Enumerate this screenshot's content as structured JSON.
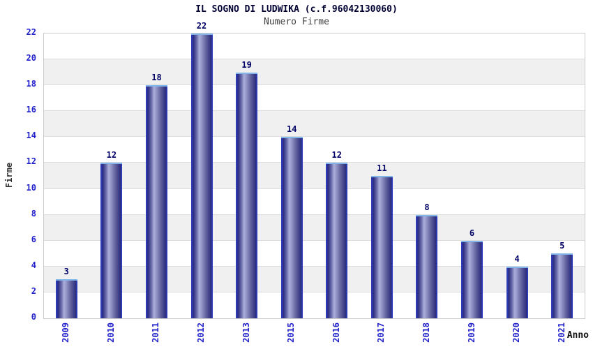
{
  "header": {
    "title": "IL SOGNO DI LUDWIKA (c.f.96042130060)",
    "subtitle": "Numero Firme"
  },
  "chart_data": {
    "type": "bar",
    "title": "IL SOGNO DI LUDWIKA (c.f.96042130060)",
    "subtitle": "Numero Firme",
    "categories": [
      "2009",
      "2010",
      "2011",
      "2012",
      "2013",
      "2015",
      "2016",
      "2017",
      "2018",
      "2019",
      "2020",
      "2021"
    ],
    "values": [
      3,
      12,
      18,
      22,
      19,
      14,
      12,
      11,
      8,
      6,
      4,
      5
    ],
    "xlabel": "Anno",
    "ylabel": "Firme",
    "ylim": [
      0,
      22
    ],
    "ytick_step": 2,
    "yticks": [
      0,
      2,
      4,
      6,
      8,
      10,
      12,
      14,
      16,
      18,
      20,
      22
    ],
    "grid": true,
    "legend": "none",
    "bar_value_labels": true,
    "colors": {
      "bar_edge_blue": "#2e3cb8",
      "bar_dark": "#2a2a80",
      "bar_light": "#abaed9",
      "bar_cap": "#82b6e8",
      "axis_tick_text": "#2222cc",
      "value_label_text": "#000066",
      "title_text": "#000033",
      "subtitle_text": "#404040",
      "band_gray": "#f0f0f0",
      "gridline": "#dcdcdc",
      "plot_border": "#cccccc"
    }
  }
}
